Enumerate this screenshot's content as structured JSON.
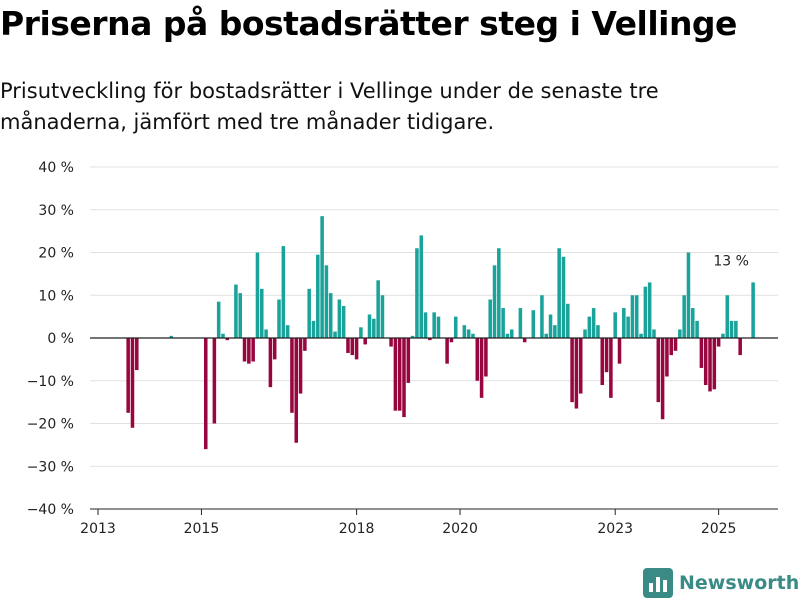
{
  "title": "Priserna på bostadsrätter steg i Vellinge",
  "subtitle": "Prisutveckling för bostadsrätter i Vellinge under de senaste tre månaderna, jämfört med tre månader tidigare.",
  "brand": {
    "name": "Newsworthy",
    "color": "#3a8a86"
  },
  "colors": {
    "positive": "#1aa39a",
    "negative": "#98063f",
    "grid": "#e1e1e1",
    "axis": "#222222"
  },
  "chart_data": {
    "type": "bar",
    "ylim": [
      -40,
      40
    ],
    "yticks": [
      40,
      30,
      20,
      10,
      0,
      -10,
      -20,
      -30,
      -40
    ],
    "ytick_labels": [
      "40 %",
      "30 %",
      "20 %",
      "10 %",
      "0 %",
      "−10 %",
      "−20 %",
      "−30 %",
      "−40 %"
    ],
    "xticks": [
      {
        "label": "2013",
        "value": 2013
      },
      {
        "label": "2015",
        "value": 2015
      },
      {
        "label": "2018",
        "value": 2018
      },
      {
        "label": "2020",
        "value": 2020
      },
      {
        "label": "2023",
        "value": 2023
      },
      {
        "label": "2025",
        "value": 2025
      }
    ],
    "annotation": {
      "label": "13 %",
      "date": "2025-09",
      "value": 13
    },
    "series": [
      {
        "dates": [
          "2013-01",
          "2013-02",
          "2013-03",
          "2013-04",
          "2013-05",
          "2013-06",
          "2013-07",
          "2013-08",
          "2013-09",
          "2013-10",
          "2013-11",
          "2013-12",
          "2014-01",
          "2014-02",
          "2014-03",
          "2014-04",
          "2014-05",
          "2014-06",
          "2014-07",
          "2014-08",
          "2014-09",
          "2014-10",
          "2014-11",
          "2014-12",
          "2015-01",
          "2015-02",
          "2015-03",
          "2015-04",
          "2015-05",
          "2015-06",
          "2015-07",
          "2015-08",
          "2015-09",
          "2015-10",
          "2015-11",
          "2015-12",
          "2016-01",
          "2016-02",
          "2016-03",
          "2016-04",
          "2016-05",
          "2016-06",
          "2016-07",
          "2016-08",
          "2016-09",
          "2016-10",
          "2016-11",
          "2016-12",
          "2017-01",
          "2017-02",
          "2017-03",
          "2017-04",
          "2017-05",
          "2017-06",
          "2017-07",
          "2017-08",
          "2017-09",
          "2017-10",
          "2017-11",
          "2017-12",
          "2018-01",
          "2018-02",
          "2018-03",
          "2018-04",
          "2018-05",
          "2018-06",
          "2018-07",
          "2018-08",
          "2018-09",
          "2018-10",
          "2018-11",
          "2018-12",
          "2019-01",
          "2019-02",
          "2019-03",
          "2019-04",
          "2019-05",
          "2019-06",
          "2019-07",
          "2019-08",
          "2019-09",
          "2019-10",
          "2019-11",
          "2019-12",
          "2020-01",
          "2020-02",
          "2020-03",
          "2020-04",
          "2020-05",
          "2020-06",
          "2020-07",
          "2020-08",
          "2020-09",
          "2020-10",
          "2020-11",
          "2020-12",
          "2021-01",
          "2021-02",
          "2021-03",
          "2021-04",
          "2021-05",
          "2021-06",
          "2021-07",
          "2021-08",
          "2021-09",
          "2021-10",
          "2021-11",
          "2021-12",
          "2022-01",
          "2022-02",
          "2022-03",
          "2022-04",
          "2022-05",
          "2022-06",
          "2022-07",
          "2022-08",
          "2022-09",
          "2022-10",
          "2022-11",
          "2022-12",
          "2023-01",
          "2023-02",
          "2023-03",
          "2023-04",
          "2023-05",
          "2023-06",
          "2023-07",
          "2023-08",
          "2023-09",
          "2023-10",
          "2023-11",
          "2023-12",
          "2024-01",
          "2024-02",
          "2024-03",
          "2024-04",
          "2024-05",
          "2024-06",
          "2024-07",
          "2024-08",
          "2024-09",
          "2024-10",
          "2024-11",
          "2024-12",
          "2025-01",
          "2025-02",
          "2025-03",
          "2025-04",
          "2025-05",
          "2025-06",
          "2025-07",
          "2025-08",
          "2025-09"
        ],
        "values": [
          null,
          null,
          null,
          null,
          null,
          null,
          null,
          -17.5,
          -21,
          -7.5,
          null,
          null,
          null,
          null,
          null,
          null,
          null,
          0.5,
          null,
          null,
          null,
          null,
          null,
          null,
          null,
          -26,
          null,
          -20,
          8.5,
          1,
          -0.5,
          null,
          12.5,
          10.5,
          -5.5,
          -6,
          -5.5,
          20,
          11.5,
          2,
          -11.5,
          -5,
          9,
          21.5,
          3,
          -17.5,
          -24.5,
          -13,
          -3,
          11.5,
          4,
          19.5,
          28.5,
          17,
          10.5,
          1.5,
          9,
          7.5,
          -3.5,
          -4,
          -5,
          2.5,
          -1.5,
          5.5,
          4.5,
          13.5,
          10,
          null,
          -2,
          -17,
          -17,
          -18.5,
          -10.5,
          0.5,
          21,
          24,
          6,
          -0.5,
          6,
          5,
          null,
          -6,
          -1,
          5,
          null,
          3,
          2,
          1,
          -10,
          -14,
          -9,
          9,
          17,
          21,
          7,
          1,
          2,
          null,
          7,
          -1,
          null,
          6.5,
          null,
          10,
          1,
          5.5,
          3,
          21,
          19,
          8,
          -15,
          -16.5,
          -13,
          2,
          5,
          7,
          3,
          -11,
          -8,
          -14,
          6,
          -6,
          7,
          5,
          10,
          10,
          1,
          12,
          13,
          2,
          -15,
          -19,
          -9,
          -4,
          -3,
          2,
          10,
          20,
          7,
          4,
          -7,
          -11,
          -12.5,
          -12,
          -2,
          1,
          10,
          4,
          4,
          -4,
          null,
          null,
          13
        ]
      }
    ]
  }
}
